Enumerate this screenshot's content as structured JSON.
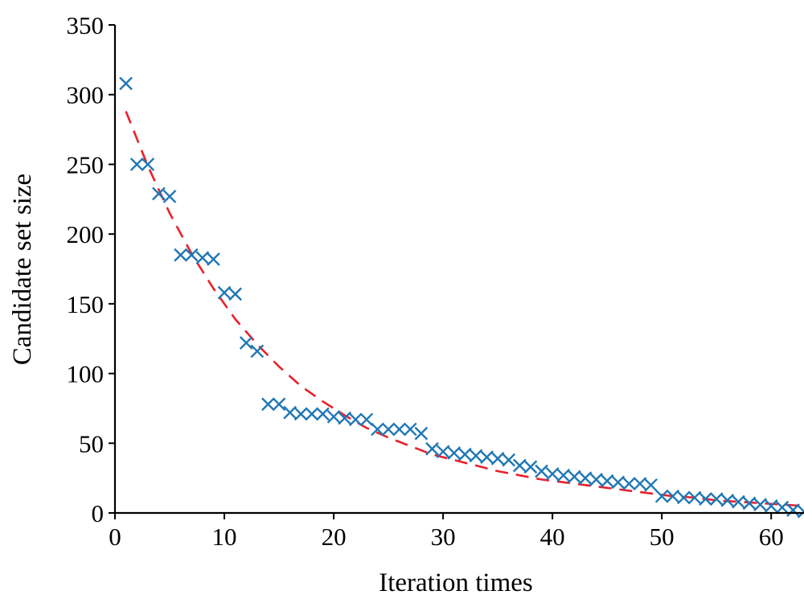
{
  "chart_data": {
    "type": "scatter",
    "xlabel": "Iteration times",
    "ylabel": "Candidate set size",
    "xlim": [
      0,
      63
    ],
    "ylim": [
      0,
      350
    ],
    "xticks": [
      0,
      10,
      20,
      30,
      40,
      50,
      60
    ],
    "yticks": [
      0,
      50,
      100,
      150,
      200,
      250,
      300,
      350
    ],
    "grid": false,
    "legend": "none",
    "series": [
      {
        "marker": "x",
        "color": "#1f77b4",
        "x": [
          1,
          2,
          3,
          4,
          5,
          6,
          7,
          8,
          9,
          10,
          11,
          12,
          13,
          14,
          15,
          16,
          17,
          18,
          19,
          20,
          21,
          22,
          23,
          24,
          25,
          26,
          27,
          28,
          29,
          30,
          31,
          32,
          33,
          34,
          35,
          36,
          37,
          38,
          39,
          40,
          41,
          42,
          43,
          44,
          45,
          46,
          47,
          48,
          49,
          50,
          51,
          52,
          53,
          54,
          55,
          56,
          57,
          58,
          59,
          60,
          61,
          62,
          63
        ],
        "y": [
          308,
          250,
          250,
          229,
          227,
          185,
          185,
          183,
          182,
          158,
          157,
          122,
          116,
          78,
          78,
          72,
          71,
          71,
          71,
          69,
          68,
          67,
          67,
          60,
          60,
          60,
          60,
          57,
          46,
          44,
          43,
          42,
          41,
          40,
          39,
          38,
          34,
          33,
          30,
          28,
          27,
          26,
          25,
          24,
          23,
          22,
          21,
          21,
          20,
          12,
          12,
          11,
          11,
          10,
          10,
          9,
          8,
          7,
          6,
          5,
          4,
          2,
          1
        ]
      },
      {
        "line": "dashed",
        "color": "#e8212c",
        "x": [
          1,
          3,
          5,
          7,
          9,
          11,
          13,
          15,
          17,
          19,
          21,
          23,
          25,
          27,
          29,
          31,
          33,
          35,
          37,
          39,
          41,
          43,
          45,
          47,
          49,
          51,
          53,
          55,
          57,
          59,
          61,
          63
        ],
        "y": [
          288,
          249,
          215,
          186,
          161,
          139,
          121,
          105,
          91,
          80,
          70,
          61,
          54,
          48,
          42,
          38,
          34,
          30,
          27,
          24,
          22,
          20,
          18,
          16,
          14,
          12,
          11,
          9,
          8,
          7,
          6,
          5
        ]
      }
    ]
  }
}
